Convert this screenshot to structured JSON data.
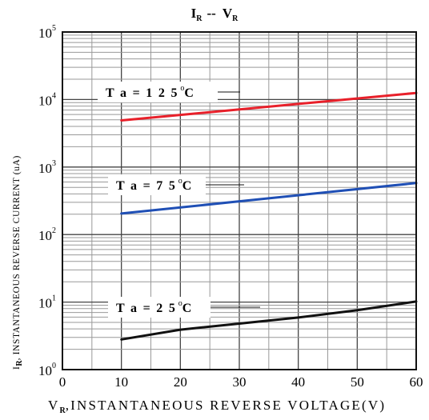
{
  "chart_data": {
    "type": "line",
    "title": {
      "main_a": "I",
      "sub_a": "R",
      "sep": "--",
      "main_b": "V",
      "sub_b": "R"
    },
    "xlabel": {
      "main": "V",
      "sub": "R",
      "rest": ",INSTANTANEOUS REVERSE VOLTAGE(V)"
    },
    "ylabel": {
      "main": "I",
      "sub": "R",
      "rest": ", INSTANTANEOUS REVERSE CURRENT (uA)"
    },
    "xlim": [
      0,
      60
    ],
    "ylim": [
      1,
      100000
    ],
    "y_scale": "log",
    "grid": true,
    "x_ticks": [
      "0",
      "10",
      "20",
      "30",
      "40",
      "50",
      "60"
    ],
    "y_ticks": [
      {
        "base": "10",
        "exp": "0"
      },
      {
        "base": "10",
        "exp": "1"
      },
      {
        "base": "10",
        "exp": "2"
      },
      {
        "base": "10",
        "exp": "3"
      },
      {
        "base": "10",
        "exp": "4"
      },
      {
        "base": "10",
        "exp": "5"
      }
    ],
    "series": [
      {
        "name": "Ta = 125°C",
        "color": "#e8202a",
        "x": [
          10,
          60
        ],
        "y": [
          4900,
          12500
        ]
      },
      {
        "name": "Ta = 75°C",
        "color": "#1f4fb5",
        "x": [
          10,
          60
        ],
        "y": [
          205,
          580
        ]
      },
      {
        "name": "Ta = 25°C",
        "color": "#111111",
        "x": [
          10,
          20,
          30,
          40,
          50,
          60
        ],
        "y": [
          2.8,
          3.9,
          4.8,
          5.9,
          7.6,
          10.2
        ]
      }
    ],
    "annotations": [
      {
        "label": "T a = 1 2 5",
        "sup": "o",
        "unit": "C"
      },
      {
        "label": "T a = 7 5",
        "sup": "o",
        "unit": "C"
      },
      {
        "label": "T a = 2 5",
        "sup": "o",
        "unit": "C"
      }
    ]
  }
}
